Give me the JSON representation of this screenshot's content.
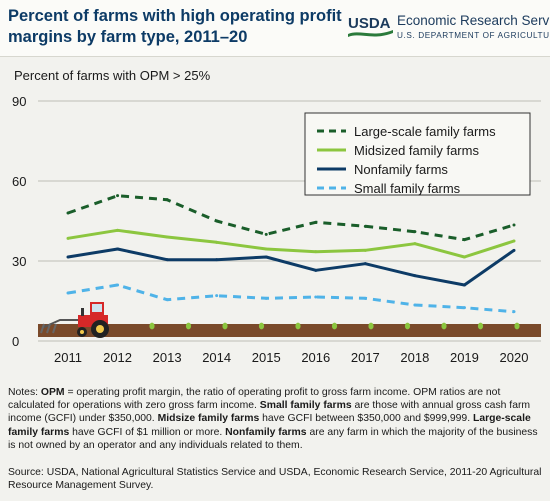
{
  "header": {
    "title": "Percent of farms with high operating profit margins by farm type, 2011–20",
    "agency_logo_text": "USDA",
    "agency_name": "Economic Research Service",
    "department": "U.S. DEPARTMENT OF AGRICULTURE"
  },
  "chart_data": {
    "type": "line",
    "ylabel": "Percent of farms with OPM > 25%",
    "x": [
      "2011",
      "2012",
      "2013",
      "2014",
      "2015",
      "2016",
      "2017",
      "2018",
      "2019",
      "2020"
    ],
    "ylim": [
      0,
      90
    ],
    "yticks": [
      "0",
      "30",
      "60",
      "90"
    ],
    "grid": true,
    "legend_position": "top-right",
    "series": [
      {
        "name": "Large-scale family farms",
        "style": "dashed",
        "color": "#1a5e2a",
        "values": [
          48,
          54.5,
          53,
          45,
          40,
          44.5,
          43,
          41,
          38,
          43.5
        ]
      },
      {
        "name": "Midsized family farms",
        "style": "solid",
        "color": "#8cc63f",
        "values": [
          38.5,
          41.5,
          39,
          37,
          34.5,
          33.5,
          34,
          36.5,
          31.5,
          37.5
        ]
      },
      {
        "name": "Nonfamily farms",
        "style": "solid",
        "color": "#0d3b66",
        "values": [
          31.5,
          34.5,
          30.5,
          30.5,
          31.5,
          26.5,
          29,
          24.5,
          21,
          34
        ]
      },
      {
        "name": "Small family farms",
        "style": "dashed",
        "color": "#4fb3e8",
        "values": [
          18,
          21,
          15.5,
          17,
          16,
          16.5,
          16,
          13.5,
          12.5,
          11
        ]
      }
    ]
  },
  "notes": {
    "p1_lead": "Notes: ",
    "p1_term1": "OPM",
    "p1_text1": " = operating profit margin, the ratio of operating profit to gross farm income. OPM ratios are not calculated for operations with zero gross farm income. ",
    "p1_term2": "Small family farms",
    "p1_text2": " are those with annual gross cash farm income (GCFI) under $350,000. ",
    "p1_term3": "Midsize family farms",
    "p1_text3": " have GCFI between $350,000 and $999,999. ",
    "p1_term4": "Large-scale family farms",
    "p1_text4": " have GCFI of $1 million or more. ",
    "p1_term5": "Nonfamily farms",
    "p1_text5": " are any farm in which the majority of the business is not owned by an operator and any individuals related to them."
  },
  "source": "Source: USDA, National Agricultural Statistics Service and USDA, Economic Research Service, 2011-20 Agricultural Resource Management Survey."
}
